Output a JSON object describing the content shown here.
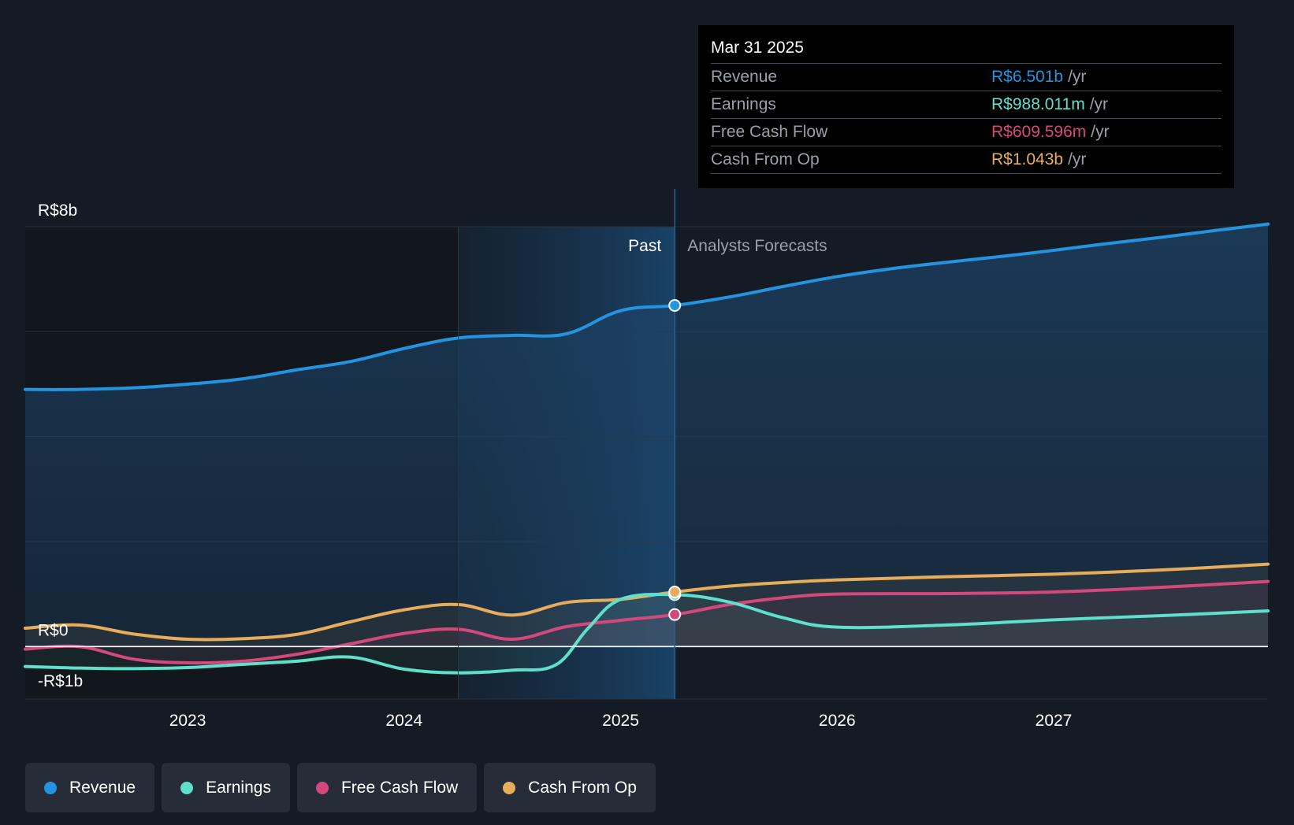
{
  "chart_data": {
    "type": "line",
    "title": "",
    "y_axis": {
      "ylim": [
        -1,
        8
      ],
      "labels": [
        {
          "text": "R$8b",
          "value": 8
        },
        {
          "text": "R$0",
          "value": 0
        },
        {
          "text": "-R$1b",
          "value": -1
        }
      ],
      "gridlines": [
        0,
        2,
        4,
        6,
        8
      ]
    },
    "x_axis": {
      "xlim": [
        2022.25,
        2027.99
      ],
      "ticks": [
        2023,
        2024,
        2025,
        2026,
        2027
      ],
      "tick_labels": [
        "2023",
        "2024",
        "2025",
        "2026",
        "2027"
      ]
    },
    "divider_x": 2025.25,
    "highlight_start_x": 2024.25,
    "past_label": "Past",
    "forecast_label": "Analysts Forecasts",
    "series": [
      {
        "name": "Revenue",
        "color": "#2394e0",
        "area": true,
        "points": [
          [
            2022.25,
            4.9
          ],
          [
            2022.5,
            4.9
          ],
          [
            2022.75,
            4.93
          ],
          [
            2023.0,
            5.0
          ],
          [
            2023.25,
            5.1
          ],
          [
            2023.5,
            5.27
          ],
          [
            2023.75,
            5.43
          ],
          [
            2024.0,
            5.68
          ],
          [
            2024.25,
            5.88
          ],
          [
            2024.5,
            5.93
          ],
          [
            2024.75,
            5.96
          ],
          [
            2025.0,
            6.4
          ],
          [
            2025.25,
            6.5
          ],
          [
            2025.5,
            6.66
          ],
          [
            2025.75,
            6.86
          ],
          [
            2026.0,
            7.05
          ],
          [
            2026.25,
            7.2
          ],
          [
            2026.5,
            7.32
          ],
          [
            2026.75,
            7.43
          ],
          [
            2027.0,
            7.55
          ],
          [
            2027.25,
            7.68
          ],
          [
            2027.5,
            7.8
          ],
          [
            2027.75,
            7.93
          ],
          [
            2027.99,
            8.05
          ]
        ]
      },
      {
        "name": "Earnings",
        "color": "#5ee0cc",
        "area": false,
        "points": [
          [
            2022.25,
            -0.38
          ],
          [
            2022.5,
            -0.41
          ],
          [
            2022.75,
            -0.42
          ],
          [
            2023.0,
            -0.4
          ],
          [
            2023.25,
            -0.34
          ],
          [
            2023.5,
            -0.28
          ],
          [
            2023.75,
            -0.2
          ],
          [
            2024.0,
            -0.43
          ],
          [
            2024.25,
            -0.5
          ],
          [
            2024.5,
            -0.45
          ],
          [
            2024.7,
            -0.35
          ],
          [
            2024.85,
            0.35
          ],
          [
            2025.0,
            0.9
          ],
          [
            2025.25,
            0.99
          ],
          [
            2025.5,
            0.85
          ],
          [
            2025.75,
            0.55
          ],
          [
            2026.0,
            0.37
          ],
          [
            2026.5,
            0.41
          ],
          [
            2027.0,
            0.51
          ],
          [
            2027.5,
            0.59
          ],
          [
            2027.99,
            0.68
          ]
        ]
      },
      {
        "name": "Free Cash Flow",
        "color": "#d5487e",
        "area": false,
        "points": [
          [
            2022.25,
            -0.05
          ],
          [
            2022.5,
            0.0
          ],
          [
            2022.75,
            -0.24
          ],
          [
            2023.0,
            -0.31
          ],
          [
            2023.25,
            -0.28
          ],
          [
            2023.5,
            -0.15
          ],
          [
            2023.75,
            0.05
          ],
          [
            2024.0,
            0.25
          ],
          [
            2024.25,
            0.33
          ],
          [
            2024.5,
            0.14
          ],
          [
            2024.75,
            0.38
          ],
          [
            2025.0,
            0.5
          ],
          [
            2025.25,
            0.61
          ],
          [
            2025.5,
            0.8
          ],
          [
            2025.75,
            0.93
          ],
          [
            2026.0,
            1.0
          ],
          [
            2026.5,
            1.01
          ],
          [
            2027.0,
            1.04
          ],
          [
            2027.5,
            1.13
          ],
          [
            2027.99,
            1.24
          ]
        ]
      },
      {
        "name": "Cash From Op",
        "color": "#e8ad5a",
        "area": false,
        "points": [
          [
            2022.25,
            0.35
          ],
          [
            2022.5,
            0.41
          ],
          [
            2022.75,
            0.24
          ],
          [
            2023.0,
            0.14
          ],
          [
            2023.25,
            0.15
          ],
          [
            2023.5,
            0.23
          ],
          [
            2023.75,
            0.47
          ],
          [
            2024.0,
            0.7
          ],
          [
            2024.25,
            0.8
          ],
          [
            2024.5,
            0.6
          ],
          [
            2024.75,
            0.84
          ],
          [
            2025.0,
            0.9
          ],
          [
            2025.25,
            1.04
          ],
          [
            2025.5,
            1.15
          ],
          [
            2025.75,
            1.22
          ],
          [
            2026.0,
            1.27
          ],
          [
            2026.5,
            1.33
          ],
          [
            2027.0,
            1.38
          ],
          [
            2027.5,
            1.46
          ],
          [
            2027.99,
            1.57
          ]
        ]
      }
    ],
    "markers": [
      {
        "series": "Revenue",
        "x": 2025.25,
        "y": 6.5
      },
      {
        "series": "Earnings",
        "x": 2025.25,
        "y": 0.99
      },
      {
        "series": "Free Cash Flow",
        "x": 2025.25,
        "y": 0.61
      },
      {
        "series": "Cash From Op",
        "x": 2025.25,
        "y": 1.04
      }
    ]
  },
  "tooltip": {
    "date": "Mar 31 2025",
    "rows": [
      {
        "label": "Revenue",
        "value": "R$6.501b",
        "unit": "/yr",
        "color": "#2394e0"
      },
      {
        "label": "Earnings",
        "value": "R$988.011m",
        "unit": "/yr",
        "color": "#5ee0cc"
      },
      {
        "label": "Free Cash Flow",
        "value": "R$609.596m",
        "unit": "/yr",
        "color": "#d5487e"
      },
      {
        "label": "Cash From Op",
        "value": "R$1.043b",
        "unit": "/yr",
        "color": "#e8ad5a"
      }
    ]
  },
  "legend": [
    {
      "label": "Revenue",
      "color": "#2394e0"
    },
    {
      "label": "Earnings",
      "color": "#5ee0cc"
    },
    {
      "label": "Free Cash Flow",
      "color": "#d5487e"
    },
    {
      "label": "Cash From Op",
      "color": "#e8ad5a"
    }
  ]
}
